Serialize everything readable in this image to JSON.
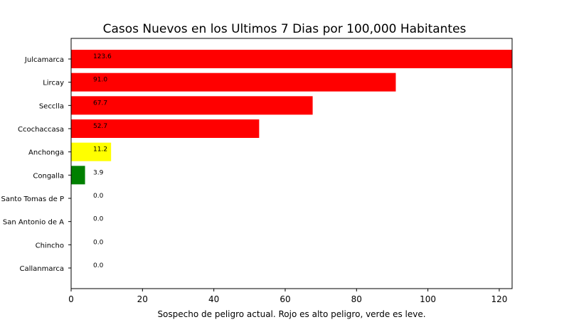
{
  "chart_data": {
    "type": "bar",
    "orientation": "horizontal",
    "title": "Casos Nuevos en los Ultimos 7 Dias por 100,000 Habitantes",
    "xlabel": "Sospecho de peligro actual. Rojo es alto peligro, verde es leve.",
    "ylabel": "",
    "xlim": [
      0,
      123.6
    ],
    "xticks": [
      0,
      20,
      40,
      60,
      80,
      100,
      120
    ],
    "grid": false,
    "categories": [
      "Julcamarca",
      "Lircay",
      "Secclla",
      "Ccochaccasa",
      "Anchonga",
      "Congalla",
      "Santo Tomas de P",
      "San Antonio de A",
      "Chincho",
      "Callanmarca"
    ],
    "values": [
      123.6,
      91.0,
      67.7,
      52.7,
      11.2,
      3.9,
      0.0,
      0.0,
      0.0,
      0.0
    ],
    "value_labels": [
      "123.6",
      "91.0",
      "67.7",
      "52.7",
      "11.2",
      "3.9",
      "0.0",
      "0.0",
      "0.0",
      "0.0"
    ],
    "colors": [
      "#ff0000",
      "#ff0000",
      "#ff0000",
      "#ff0000",
      "#ffff00",
      "#008000",
      "#ff0000",
      "#ff0000",
      "#ff0000",
      "#ff0000"
    ]
  }
}
